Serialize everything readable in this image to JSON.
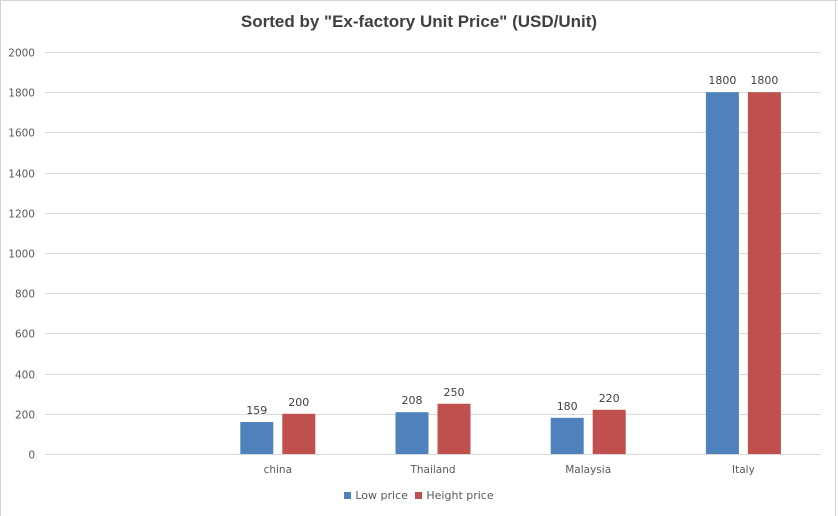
{
  "chart_data": {
    "type": "bar",
    "title": "Sorted by \"Ex-factory Unit Price\" (USD/Unit)",
    "xlabel": "",
    "ylabel": "",
    "categories": [
      "",
      "china",
      "Thailand",
      "Malaysia",
      "Italy"
    ],
    "series": [
      {
        "name": "Low price",
        "color": "#4f81bd",
        "values": [
          null,
          159,
          208,
          180,
          1800
        ]
      },
      {
        "name": "Height price",
        "color": "#c0504d",
        "values": [
          null,
          200,
          250,
          220,
          1800
        ]
      }
    ],
    "ylim": [
      0,
      2000
    ],
    "yticks": [
      0,
      200,
      400,
      600,
      800,
      1000,
      1200,
      1400,
      1600,
      1800,
      2000
    ],
    "grid": true,
    "legend": "bottom",
    "data_labels": true
  },
  "colors": {
    "title": "#404040",
    "axis_text": "#595959",
    "gridline": "#d9d9d9",
    "sheet_border": "#d4d4d4"
  }
}
